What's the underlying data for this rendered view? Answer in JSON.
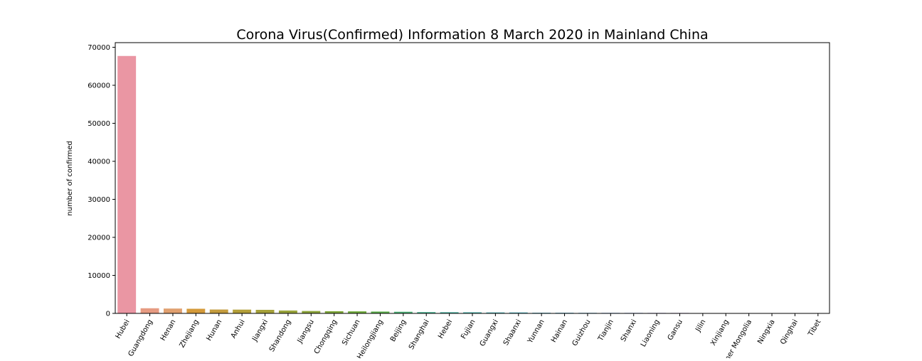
{
  "chart_data": {
    "type": "bar",
    "title": "Corona Virus(Confirmed) Information 8 March 2020 in Mainland China",
    "xlabel": "",
    "ylabel": "number of confirmed",
    "ylim": [
      0,
      70000
    ],
    "yticks": [
      0,
      10000,
      20000,
      30000,
      40000,
      50000,
      60000,
      70000
    ],
    "grid": false,
    "categories": [
      "Hubei",
      "Guangdong",
      "Henan",
      "Zhejiang",
      "Hunan",
      "Anhui",
      "Jiangxi",
      "Shandong",
      "Jiangsu",
      "Chongqing",
      "Sichuan",
      "Heilongjiang",
      "Beijing",
      "Shanghai",
      "Hebei",
      "Fujian",
      "Guangxi",
      "Shaanxi",
      "Yunnan",
      "Hainan",
      "Guizhou",
      "Tianjin",
      "Shanxi",
      "Liaoning",
      "Gansu",
      "Jilin",
      "Xinjiang",
      "Inner Mongolia",
      "Ningxia",
      "Qinghai",
      "Tibet"
    ],
    "values": [
      67707,
      1352,
      1272,
      1215,
      1018,
      990,
      935,
      758,
      631,
      576,
      539,
      481,
      428,
      342,
      318,
      296,
      252,
      245,
      174,
      168,
      146,
      136,
      133,
      125,
      119,
      93,
      76,
      75,
      75,
      18,
      1
    ],
    "colors": [
      "#ea96a3",
      "#e69b82",
      "#e0a070",
      "#d49a3a",
      "#c49c3e",
      "#b39f39",
      "#a6a13a",
      "#98a33a",
      "#8ca53a",
      "#7fa83a",
      "#70ab3c",
      "#5aae4a",
      "#4ab075",
      "#48b08f",
      "#49b09e",
      "#4aafa9",
      "#4aaeb2",
      "#4cadbb",
      "#4facc3",
      "#54abcc",
      "#5ba9d8",
      "#6ca4e5",
      "#86a0ec",
      "#a398ec",
      "#bd8eea",
      "#d187e4",
      "#df82dc",
      "#e47fcd",
      "#e684be",
      "#e88ab0",
      "#e990a4"
    ]
  }
}
